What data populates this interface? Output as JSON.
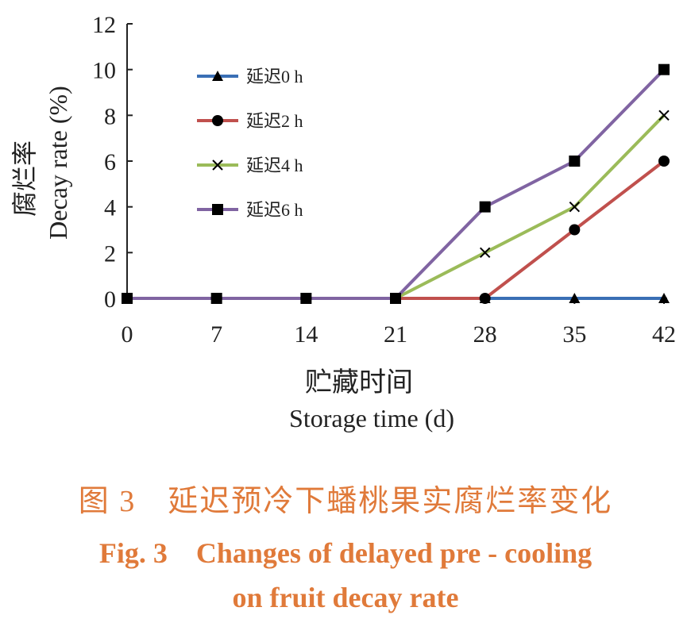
{
  "chart_data": {
    "type": "line",
    "x": [
      0,
      7,
      14,
      21,
      28,
      35,
      42
    ],
    "ylabel_cn": "腐烂率",
    "ylabel_en": "Decay rate (%)",
    "xlabel_cn": "贮藏时间",
    "xlabel_en": "Storage time (d)",
    "ylim": [
      0,
      12
    ],
    "yticks": [
      0,
      2,
      4,
      6,
      8,
      10,
      12
    ],
    "xticks": [
      0,
      7,
      14,
      21,
      28,
      35,
      42
    ],
    "legend_position": "upper-left",
    "series": [
      {
        "name": "延迟0 h",
        "marker": "triangle",
        "color": "#3a6fb5",
        "values": [
          0,
          0,
          0,
          0,
          0,
          0,
          0
        ]
      },
      {
        "name": "延迟2 h",
        "marker": "circle",
        "color": "#c0504d",
        "values": [
          0,
          0,
          0,
          0,
          0,
          3,
          6
        ]
      },
      {
        "name": "延迟4 h",
        "marker": "x",
        "color": "#9bbb59",
        "values": [
          0,
          0,
          0,
          0,
          2,
          4,
          8
        ]
      },
      {
        "name": "延迟6 h",
        "marker": "square",
        "color": "#8064a2",
        "values": [
          0,
          0,
          0,
          0,
          4,
          6,
          10
        ]
      }
    ]
  },
  "caption": {
    "cn": "图 3　延迟预冷下蟠桃果实腐烂率变化",
    "en_line1": "Fig. 3　Changes of delayed pre - cooling",
    "en_line2": "on fruit decay rate"
  }
}
